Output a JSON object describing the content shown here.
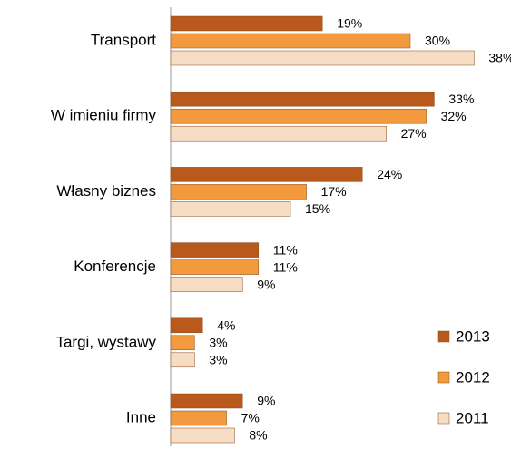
{
  "chart_data": {
    "type": "barh",
    "categories": [
      "Transport",
      "W imieniu firmy",
      "Własny biznes",
      "Konferencje",
      "Targi, wystawy",
      "Inne"
    ],
    "series": [
      {
        "name": "2013",
        "color": "#b95a1c",
        "values": [
          19,
          33,
          24,
          11,
          4,
          9
        ],
        "value_labels": [
          "19%",
          "33%",
          "24%",
          "11%",
          "4%",
          "9%"
        ]
      },
      {
        "name": "2012",
        "color": "#f39a3e",
        "values": [
          30,
          32,
          17,
          11,
          3,
          7
        ],
        "value_labels": [
          "30%",
          "32%",
          "17%",
          "11%",
          "3%",
          "7%"
        ]
      },
      {
        "name": "2011",
        "color": "#f5dcc3",
        "values": [
          38,
          27,
          15,
          9,
          3,
          8
        ],
        "value_labels": [
          "38%",
          "27%",
          "15%",
          "9%",
          "3%",
          "8%"
        ]
      }
    ],
    "xlim": [
      0,
      40
    ],
    "legend": "right"
  }
}
